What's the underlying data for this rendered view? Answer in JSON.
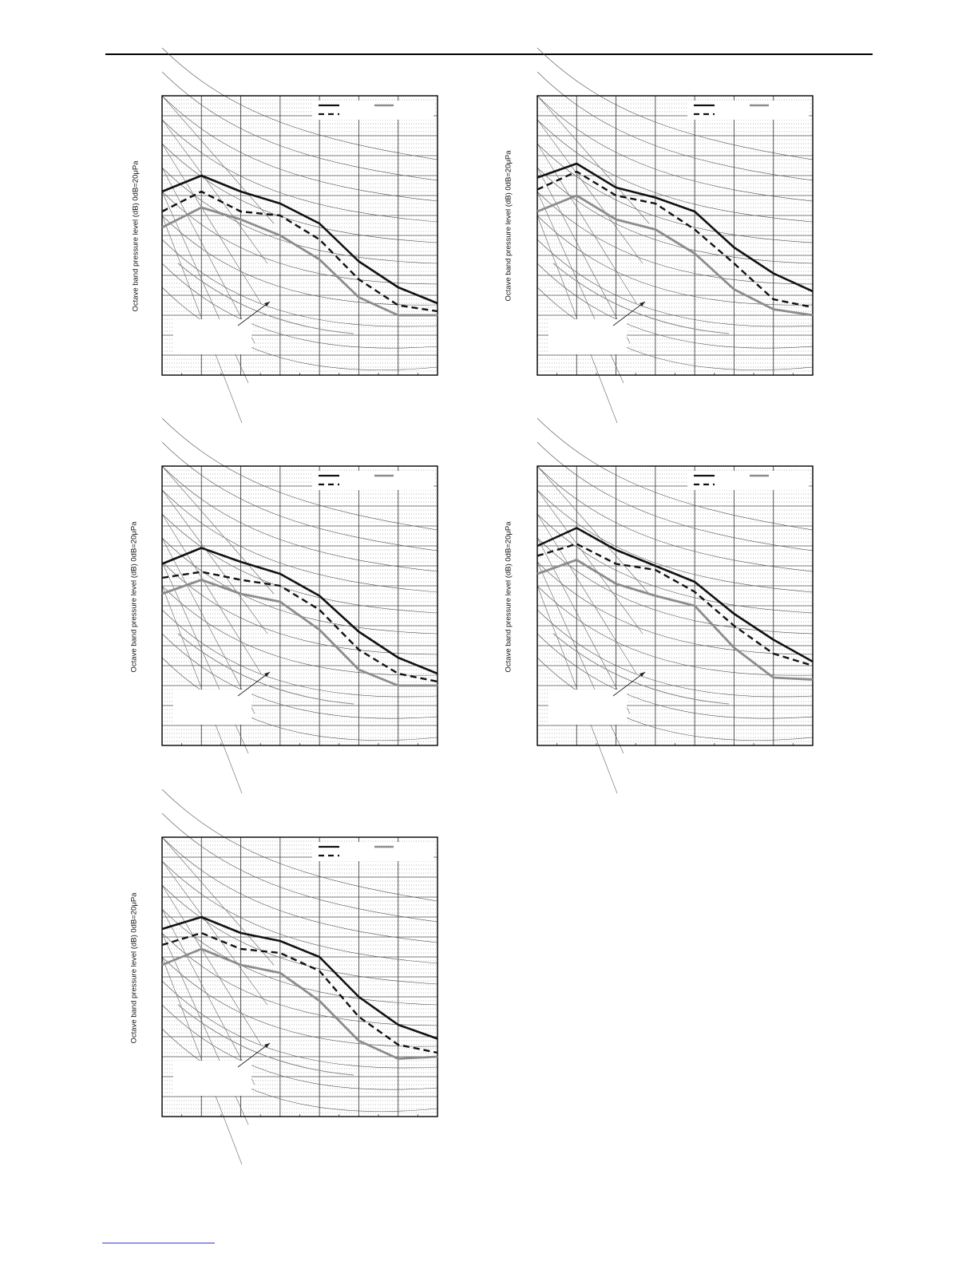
{
  "page": {
    "accent_color": "#000000",
    "link_color": "#3344cc"
  },
  "chart_data": [
    {
      "type": "line",
      "ylabel": "Octave band pressure level (dB) 0dB=20μPa",
      "x": [
        1,
        2,
        3,
        4,
        5,
        6,
        7,
        8
      ],
      "xlim": [
        1,
        8
      ],
      "ylim": [
        0,
        14
      ],
      "grid": true,
      "legend": "top-right",
      "series": [
        {
          "style": "solid-black",
          "values": [
            9.2,
            10.0,
            9.2,
            8.6,
            7.6,
            5.7,
            4.4,
            3.6
          ]
        },
        {
          "style": "dashed-black",
          "values": [
            8.2,
            9.2,
            8.2,
            8.0,
            6.8,
            4.8,
            3.5,
            3.2
          ]
        },
        {
          "style": "solid-gray",
          "values": [
            7.4,
            8.4,
            7.8,
            7.0,
            5.8,
            3.9,
            3.0,
            3.0
          ]
        }
      ]
    },
    {
      "type": "line",
      "ylabel": "Octave band pressure level (dB) 0dB=20μPa",
      "x": [
        1,
        2,
        3,
        4,
        5,
        6,
        7,
        8
      ],
      "xlim": [
        1,
        8
      ],
      "ylim": [
        0,
        14
      ],
      "grid": true,
      "legend": "top-right",
      "series": [
        {
          "style": "solid-black",
          "values": [
            9.9,
            10.6,
            9.4,
            8.9,
            8.2,
            6.4,
            5.1,
            4.2
          ]
        },
        {
          "style": "dashed-black",
          "values": [
            9.3,
            10.2,
            9.0,
            8.6,
            7.3,
            5.6,
            3.8,
            3.4
          ]
        },
        {
          "style": "solid-gray",
          "values": [
            8.2,
            9.0,
            7.8,
            7.3,
            6.1,
            4.3,
            3.3,
            3.0
          ]
        }
      ]
    },
    {
      "type": "line",
      "ylabel": "Octave band pressure level (dB) 0dB=20μPa",
      "x": [
        1,
        2,
        3,
        4,
        5,
        6,
        7,
        8
      ],
      "xlim": [
        1,
        8
      ],
      "ylim": [
        0,
        14
      ],
      "grid": true,
      "legend": "top-right",
      "series": [
        {
          "style": "solid-black",
          "values": [
            9.1,
            9.9,
            9.2,
            8.6,
            7.5,
            5.7,
            4.4,
            3.6
          ]
        },
        {
          "style": "dashed-black",
          "values": [
            8.4,
            8.7,
            8.3,
            8.0,
            6.8,
            4.8,
            3.6,
            3.2
          ]
        },
        {
          "style": "solid-gray",
          "values": [
            7.6,
            8.3,
            7.6,
            7.2,
            5.8,
            3.8,
            3.0,
            3.0
          ]
        }
      ]
    },
    {
      "type": "line",
      "ylabel": "Octave band pressure level (dB) 0dB=20μPa",
      "x": [
        1,
        2,
        3,
        4,
        5,
        6,
        7,
        8
      ],
      "xlim": [
        1,
        8
      ],
      "ylim": [
        0,
        14
      ],
      "grid": true,
      "legend": "top-right",
      "series": [
        {
          "style": "solid-black",
          "values": [
            10.0,
            10.9,
            9.8,
            9.0,
            8.2,
            6.6,
            5.3,
            4.2
          ]
        },
        {
          "style": "dashed-black",
          "values": [
            9.5,
            10.1,
            9.1,
            8.8,
            7.7,
            6.0,
            4.6,
            4.0
          ]
        },
        {
          "style": "solid-gray",
          "values": [
            8.6,
            9.3,
            8.1,
            7.5,
            7.0,
            4.9,
            3.4,
            3.3
          ]
        }
      ]
    },
    {
      "type": "line",
      "ylabel": "Octave band pressure level (dB) 0dB=20μPa",
      "x": [
        1,
        2,
        3,
        4,
        5,
        6,
        7,
        8
      ],
      "xlim": [
        1,
        8
      ],
      "ylim": [
        0,
        14
      ],
      "grid": true,
      "legend": "top-right",
      "series": [
        {
          "style": "solid-black",
          "values": [
            9.4,
            10.0,
            9.2,
            8.8,
            8.0,
            6.0,
            4.6,
            3.9
          ]
        },
        {
          "style": "dashed-black",
          "values": [
            8.6,
            9.2,
            8.4,
            8.2,
            7.3,
            5.0,
            3.6,
            3.2
          ]
        },
        {
          "style": "solid-gray",
          "values": [
            7.6,
            8.4,
            7.6,
            7.2,
            5.8,
            3.8,
            2.9,
            3.0
          ]
        }
      ]
    }
  ]
}
